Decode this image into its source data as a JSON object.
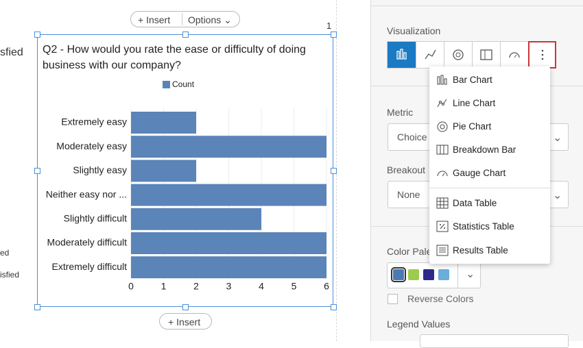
{
  "toolbar": {
    "insert": "Insert",
    "options": "Options"
  },
  "left_fragments": [
    "sfied",
    "ed",
    "isfied"
  ],
  "corner_number": "1",
  "chart_data": {
    "type": "bar",
    "orientation": "horizontal",
    "title": "Q2 - How would you rate the ease or difficulty of doing business with our company?",
    "categories": [
      "Extremely easy",
      "Moderately easy",
      "Slightly easy",
      "Neither easy nor ...",
      "Slightly difficult",
      "Moderately difficult",
      "Extremely difficult"
    ],
    "series": [
      {
        "name": "Count",
        "color": "#5b84b8",
        "values": [
          2,
          6,
          2,
          6,
          4,
          6,
          6
        ]
      }
    ],
    "xlim": [
      0,
      6
    ],
    "xticks": [
      0,
      1,
      2,
      3,
      4,
      5,
      6
    ],
    "grid": true,
    "legend": "top"
  },
  "bottom_insert": "Insert",
  "panel": {
    "visualization": "Visualization",
    "menu": [
      "Bar Chart",
      "Line Chart",
      "Pie Chart",
      "Breakdown Bar",
      "Gauge Chart",
      "Data Table",
      "Statistics Table",
      "Results Table"
    ],
    "metric": "Metric",
    "metric_value": "Choice",
    "breakout": "Breakout",
    "breakout_value": "None",
    "color_palette": "Color Pale",
    "palette_colors": [
      "#4a7ab5",
      "#9ccc4e",
      "#2e2a8a",
      "#6aaedb"
    ],
    "reverse_colors": "Reverse Colors",
    "legend_values": "Legend Values"
  }
}
